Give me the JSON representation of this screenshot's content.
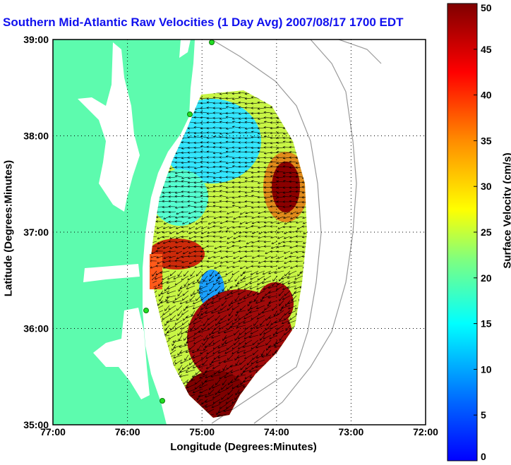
{
  "title": "Southern Mid-Atlantic Raw Velocities (1 Day Avg) 2007/08/17 1700 EDT",
  "axes": {
    "xlabel": "Longitude (Degrees:Minutes)",
    "ylabel": "Latitude (Degrees:Minutes)",
    "xticks": [
      "77:00",
      "76:00",
      "75:00",
      "74:00",
      "73:00",
      "72:00"
    ],
    "yticks": [
      "39:00",
      "38:00",
      "37:00",
      "36:00",
      "35:00"
    ]
  },
  "colorbar": {
    "label": "Surface Velocity (cm/s)",
    "ticks": [
      "0",
      "5",
      "10",
      "15",
      "20",
      "25",
      "30",
      "35",
      "40",
      "45",
      "50"
    ],
    "min": 0,
    "max": 50
  },
  "colors": {
    "land": "#5dfbae",
    "water": "#ffffff",
    "title": "#1010ee",
    "station": "#22dd22",
    "bathymetry": "#9a9a9a"
  }
}
